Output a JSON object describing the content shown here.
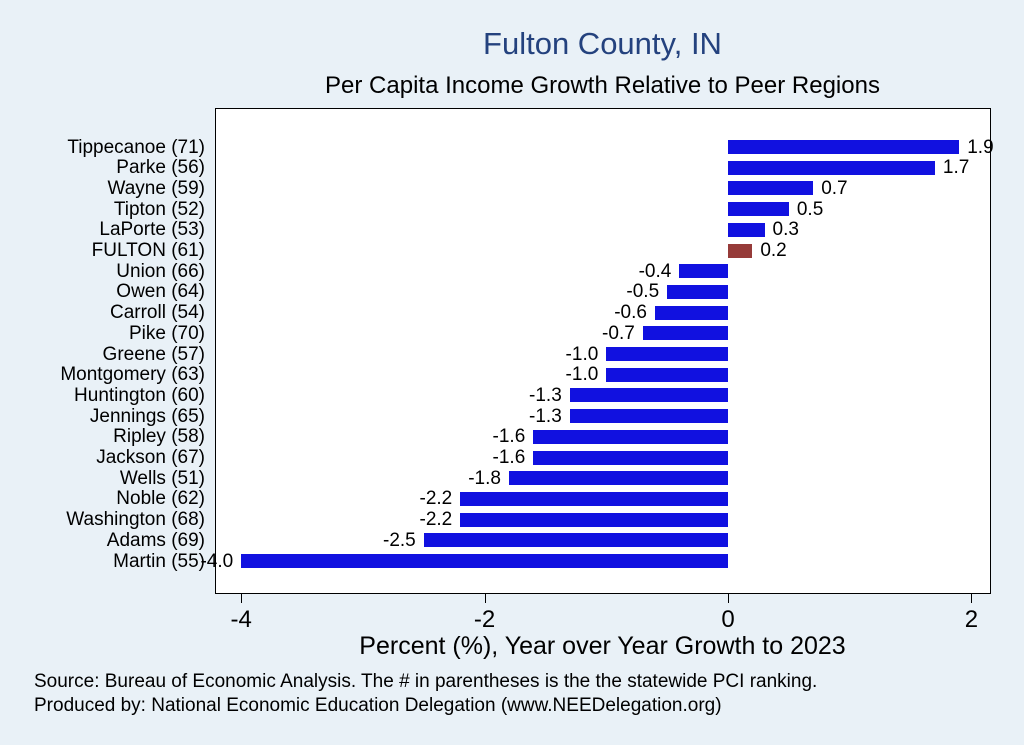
{
  "chart_data": {
    "type": "bar",
    "orientation": "horizontal",
    "title": "Fulton County, IN",
    "subtitle": "Per Capita Income Growth Relative to Peer Regions",
    "xlabel": "Percent (%), Year over Year Growth to 2023",
    "xlim": [
      -4.2,
      2.15
    ],
    "xticks": [
      -4,
      -2,
      0,
      2
    ],
    "grid": false,
    "legend": "none",
    "bar_color": "#1111e0",
    "highlight_color": "#963b39",
    "highlight_category": "FULTON (61)",
    "rows": [
      {
        "label": "Tippecanoe (71)",
        "value": 1.9,
        "display": "1.9"
      },
      {
        "label": "Parke (56)",
        "value": 1.7,
        "display": "1.7"
      },
      {
        "label": "Wayne (59)",
        "value": 0.7,
        "display": "0.7"
      },
      {
        "label": "Tipton (52)",
        "value": 0.5,
        "display": "0.5"
      },
      {
        "label": "LaPorte (53)",
        "value": 0.3,
        "display": "0.3"
      },
      {
        "label": "FULTON (61)",
        "value": 0.2,
        "display": "0.2",
        "highlight": true
      },
      {
        "label": "Union (66)",
        "value": -0.4,
        "display": "-0.4"
      },
      {
        "label": "Owen (64)",
        "value": -0.5,
        "display": "-0.5"
      },
      {
        "label": "Carroll (54)",
        "value": -0.6,
        "display": "-0.6"
      },
      {
        "label": "Pike (70)",
        "value": -0.7,
        "display": "-0.7"
      },
      {
        "label": "Greene (57)",
        "value": -1.0,
        "display": "-1.0"
      },
      {
        "label": "Montgomery (63)",
        "value": -1.0,
        "display": "-1.0"
      },
      {
        "label": "Huntington (60)",
        "value": -1.3,
        "display": "-1.3"
      },
      {
        "label": "Jennings (65)",
        "value": -1.3,
        "display": "-1.3"
      },
      {
        "label": "Ripley (58)",
        "value": -1.6,
        "display": "-1.6"
      },
      {
        "label": "Jackson (67)",
        "value": -1.6,
        "display": "-1.6"
      },
      {
        "label": "Wells (51)",
        "value": -1.8,
        "display": "-1.8"
      },
      {
        "label": "Noble (62)",
        "value": -2.2,
        "display": "-2.2"
      },
      {
        "label": "Washington (68)",
        "value": -2.2,
        "display": "-2.2"
      },
      {
        "label": "Adams (69)",
        "value": -2.5,
        "display": "-2.5"
      },
      {
        "label": "Martin (55)",
        "value": -4.0,
        "display": "-4.0"
      }
    ]
  },
  "colors": {
    "background": "#e9f1f7",
    "plot_background": "#ffffff",
    "title": "#24427e"
  },
  "footer": {
    "source": "Source: Bureau of Economic Analysis. The # in parentheses is the the statewide PCI ranking.",
    "produced": "Produced by: National Economic Education Delegation (www.NEEDelegation.org)"
  }
}
